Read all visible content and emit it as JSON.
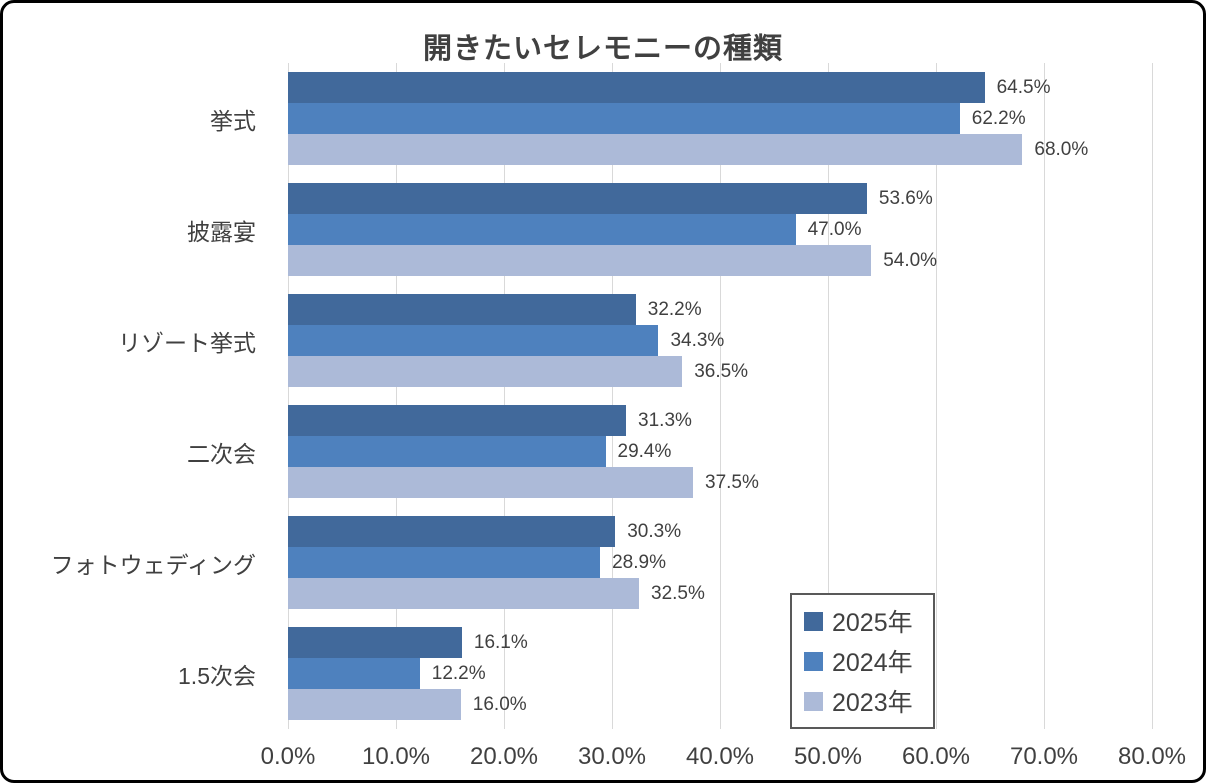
{
  "title": "開きたいセレモニーの種類",
  "chart_data": {
    "type": "bar",
    "orientation": "horizontal",
    "title": "開きたいセレモニーの種類",
    "categories": [
      "挙式",
      "披露宴",
      "リゾート挙式",
      "二次会",
      "フォトウェディング",
      "1.5次会"
    ],
    "series": [
      {
        "name": "2025年",
        "color": "#41699B",
        "values": [
          64.5,
          53.6,
          32.2,
          31.3,
          30.3,
          16.1
        ]
      },
      {
        "name": "2024年",
        "color": "#4E81BE",
        "values": [
          62.2,
          47.0,
          34.3,
          29.4,
          28.9,
          12.2
        ]
      },
      {
        "name": "2023年",
        "color": "#ACBAD8",
        "values": [
          68.0,
          54.0,
          36.5,
          37.5,
          32.5,
          16.0
        ]
      }
    ],
    "value_suffix": "%",
    "value_decimals": 1,
    "xlabel": "",
    "ylabel": "",
    "xlim": [
      0,
      80
    ],
    "x_ticks": [
      "0.0%",
      "10.0%",
      "20.0%",
      "30.0%",
      "40.0%",
      "50.0%",
      "60.0%",
      "70.0%",
      "80.0%"
    ],
    "grid": true,
    "gridline_color": "#d9d9d9",
    "legend_position": "inside-bottom-right",
    "legend_border_color": "#595959",
    "label_color": "#404040"
  }
}
